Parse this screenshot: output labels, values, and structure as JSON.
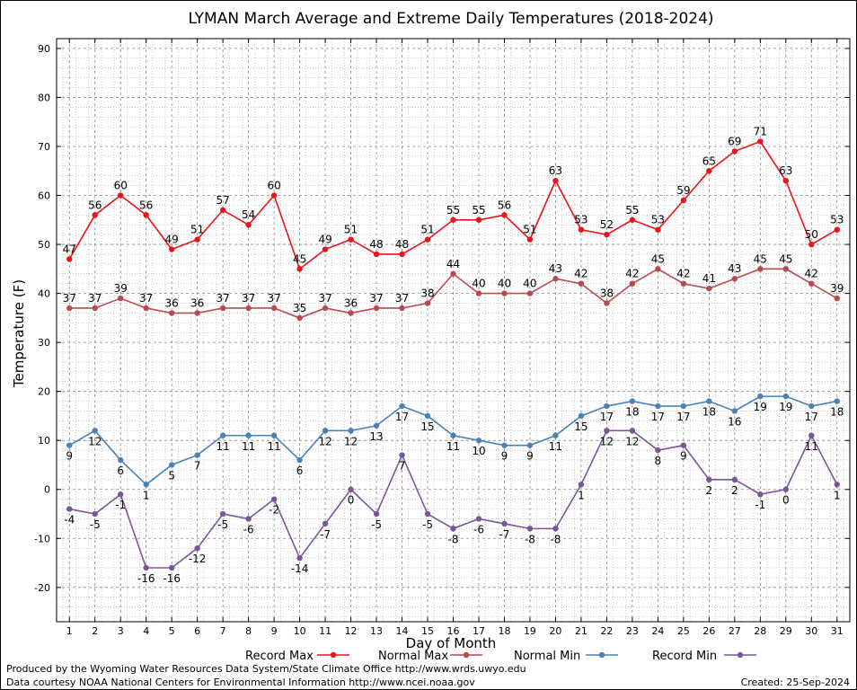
{
  "chart_data": {
    "type": "line",
    "title": "LYMAN March Average and Extreme Daily Temperatures (2018-2024)",
    "xlabel": "Day of Month",
    "ylabel": "Temperature (F)",
    "ylim": [
      -27,
      92
    ],
    "yticks": [
      -20,
      -10,
      0,
      10,
      20,
      30,
      40,
      50,
      60,
      70,
      80,
      90
    ],
    "x": [
      1,
      2,
      3,
      4,
      5,
      6,
      7,
      8,
      9,
      10,
      11,
      12,
      13,
      14,
      15,
      16,
      17,
      18,
      19,
      20,
      21,
      22,
      23,
      24,
      25,
      26,
      27,
      28,
      29,
      30,
      31
    ],
    "grid": true,
    "legend_position": "bottom",
    "series": [
      {
        "name": "Record Max",
        "color": "#e8141b",
        "label_pos": "above",
        "values": [
          47,
          56,
          60,
          56,
          49,
          51,
          57,
          54,
          60,
          45,
          49,
          51,
          48,
          48,
          51,
          55,
          55,
          56,
          51,
          63,
          53,
          52,
          55,
          53,
          59,
          65,
          69,
          71,
          63,
          50,
          53
        ]
      },
      {
        "name": "Normal Max",
        "color": "#b94a4e",
        "label_pos": "above",
        "values": [
          37,
          37,
          39,
          37,
          36,
          36,
          37,
          37,
          37,
          35,
          37,
          36,
          37,
          37,
          38,
          44,
          40,
          40,
          40,
          43,
          42,
          38,
          42,
          45,
          42,
          41,
          43,
          45,
          45,
          42,
          39
        ]
      },
      {
        "name": "Normal Min",
        "color": "#4a82b8",
        "label_pos": "below",
        "values": [
          9,
          12,
          6,
          1,
          5,
          7,
          11,
          11,
          11,
          6,
          12,
          12,
          13,
          17,
          15,
          11,
          10,
          9,
          9,
          11,
          15,
          17,
          18,
          17,
          17,
          18,
          16,
          19,
          19,
          17,
          18
        ]
      },
      {
        "name": "Record Min",
        "color": "#7b559a",
        "label_pos": "below",
        "values": [
          -4,
          -5,
          -1,
          -16,
          -16,
          -12,
          -5,
          -6,
          -2,
          -14,
          -7,
          0,
          -5,
          7,
          -5,
          -8,
          -6,
          -7,
          -8,
          -8,
          1,
          12,
          12,
          8,
          9,
          2,
          2,
          -1,
          0,
          11,
          1
        ]
      }
    ]
  },
  "footer": {
    "produced_by": "Produced by the Wyoming Water Resources Data System/State Climate Office http://www.wrds.uwyo.edu",
    "data_courtesy": "Data courtesy NOAA National Centers for Environmental Information http://www.ncei.noaa.gov",
    "created": "Created:  25-Sep-2024"
  }
}
